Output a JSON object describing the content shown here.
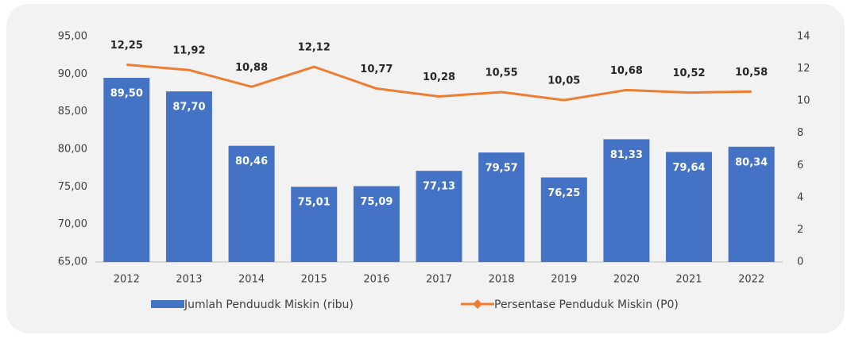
{
  "chart_data": {
    "type": "combo",
    "categories": [
      "2012",
      "2013",
      "2014",
      "2015",
      "2016",
      "2017",
      "2018",
      "2019",
      "2020",
      "2021",
      "2022"
    ],
    "series": [
      {
        "name": "Jumlah Penduudk Miskin (ribu)",
        "type": "bar",
        "color": "#4472c4",
        "axis": "y",
        "values": [
          89.5,
          87.7,
          80.46,
          75.01,
          75.09,
          77.13,
          79.57,
          76.25,
          81.33,
          79.64,
          80.34
        ],
        "value_labels": [
          "89,50",
          "87,70",
          "80,46",
          "75,01",
          "75,09",
          "77,13",
          "79,57",
          "76,25",
          "81,33",
          "79,64",
          "80,34"
        ]
      },
      {
        "name": "Persentase Penduduk Miskin (P0)",
        "type": "line",
        "color": "#ed7d31",
        "axis": "y2",
        "values": [
          12.25,
          11.92,
          10.88,
          12.12,
          10.77,
          10.28,
          10.55,
          10.05,
          10.68,
          10.52,
          10.58
        ],
        "value_labels": [
          "12,25",
          "11,92",
          "10,88",
          "12,12",
          "10,77",
          "10,28",
          "10,55",
          "10,05",
          "10,68",
          "10,52",
          "10,58"
        ]
      }
    ],
    "ylim": [
      65,
      95
    ],
    "yticks": [
      {
        "value": 65,
        "label": "65,00"
      },
      {
        "value": 70,
        "label": "70,00"
      },
      {
        "value": 75,
        "label": "75,00"
      },
      {
        "value": 80,
        "label": "80,00"
      },
      {
        "value": 85,
        "label": "85,00"
      },
      {
        "value": 90,
        "label": "90,00"
      },
      {
        "value": 95,
        "label": "95,00"
      }
    ],
    "y2lim": [
      0,
      14
    ],
    "y2ticks": [
      0,
      2,
      4,
      6,
      8,
      10,
      12,
      14
    ],
    "grid": false,
    "legend": "bottom"
  }
}
